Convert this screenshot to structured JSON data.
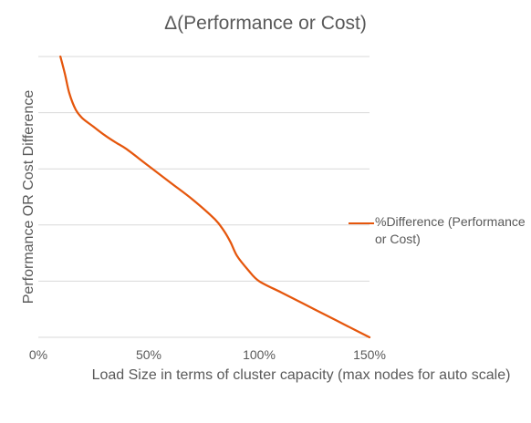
{
  "chart_data": {
    "type": "line",
    "title": "Δ(Performance or Cost)",
    "xlabel": "Load Size in terms of cluster capacity (max nodes for auto scale)",
    "ylabel": "Performance OR Cost Difference",
    "x_tick_labels": [
      "0%",
      "50%",
      "100%",
      "150%"
    ],
    "x_ticks": [
      0,
      50,
      100,
      150
    ],
    "xlim": [
      0,
      150
    ],
    "ylim": [
      0,
      5
    ],
    "y_gridlines": [
      0,
      1,
      2,
      3,
      4,
      5
    ],
    "y_tick_labels_shown": false,
    "grid": true,
    "legend_position": "right",
    "series": [
      {
        "name": "%Difference (Performance or Cost)",
        "color": "#e5560c",
        "x": [
          10,
          12,
          14,
          17,
          20,
          25,
          30,
          35,
          40,
          50,
          60,
          70,
          80,
          84,
          87,
          90,
          95,
          100,
          110,
          120,
          130,
          140,
          150
        ],
        "y": [
          5.0,
          4.7,
          4.35,
          4.05,
          3.9,
          3.75,
          3.6,
          3.47,
          3.35,
          3.05,
          2.75,
          2.45,
          2.1,
          1.9,
          1.7,
          1.45,
          1.2,
          1.0,
          0.8,
          0.6,
          0.4,
          0.2,
          0.0
        ]
      }
    ]
  }
}
